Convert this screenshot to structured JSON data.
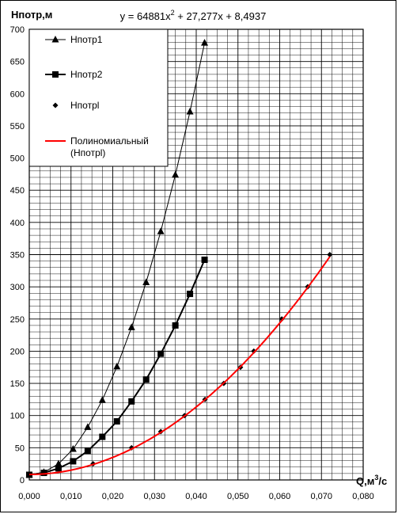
{
  "chart_data": {
    "type": "line",
    "title": "y = 64881x² + 27,277x + 8,4937",
    "ylabel": "Hпотр,м",
    "xlabel": "Q,м³/с",
    "xlim": [
      0,
      0.08
    ],
    "ylim": [
      0,
      700
    ],
    "x_ticks": [
      0,
      0.01,
      0.02,
      0.03,
      0.04,
      0.05,
      0.06,
      0.07,
      0.08
    ],
    "x_tick_labels": [
      "0,000",
      "0,010",
      "0,020",
      "0,030",
      "0,040",
      "0,050",
      "0,060",
      "0,070",
      "0,080"
    ],
    "y_ticks": [
      0,
      50,
      100,
      150,
      200,
      250,
      300,
      350,
      400,
      450,
      500,
      550,
      600,
      650,
      700
    ],
    "y_tick_labels": [
      "0",
      "50",
      "100",
      "150",
      "200",
      "250",
      "300",
      "350",
      "400",
      "450",
      "500",
      "550",
      "600",
      "650",
      "700"
    ],
    "grid": true,
    "legend_position": "top-left",
    "series": [
      {
        "name": "Hпотр1",
        "marker": "triangle",
        "color": "#000000",
        "line": true,
        "x": [
          0.0,
          0.0035,
          0.007,
          0.0105,
          0.014,
          0.0175,
          0.021,
          0.0245,
          0.028,
          0.0315,
          0.035,
          0.0385,
          0.042
        ],
        "y": [
          8,
          12,
          25,
          48,
          82,
          124,
          176,
          237,
          307,
          386,
          474,
          572,
          679
        ]
      },
      {
        "name": "Hпотр2",
        "marker": "square",
        "color": "#000000",
        "line": true,
        "x": [
          0.0,
          0.0035,
          0.007,
          0.0105,
          0.014,
          0.0175,
          0.021,
          0.0245,
          0.028,
          0.0315,
          0.035,
          0.0385,
          0.042
        ],
        "y": [
          8,
          11,
          18,
          29,
          45,
          67,
          91,
          122,
          156,
          196,
          240,
          289,
          342
        ]
      },
      {
        "name": "Hпотрl",
        "marker": "diamond",
        "color": "#000000",
        "line": false,
        "x": [
          0.0,
          0.0153,
          0.0245,
          0.0315,
          0.0372,
          0.0421,
          0.0466,
          0.0506,
          0.0538,
          0.0605,
          0.0667,
          0.072
        ],
        "y": [
          8,
          25,
          50,
          75,
          100,
          125,
          150,
          175,
          200,
          250,
          300,
          350
        ]
      },
      {
        "name": "Полиномиальный\n(Hпотрl)",
        "marker": "none",
        "color": "#ff0000",
        "line": true,
        "trendline_coeffs": [
          64881,
          27.277,
          8.4937
        ],
        "x_range": [
          0,
          0.072
        ]
      }
    ]
  }
}
